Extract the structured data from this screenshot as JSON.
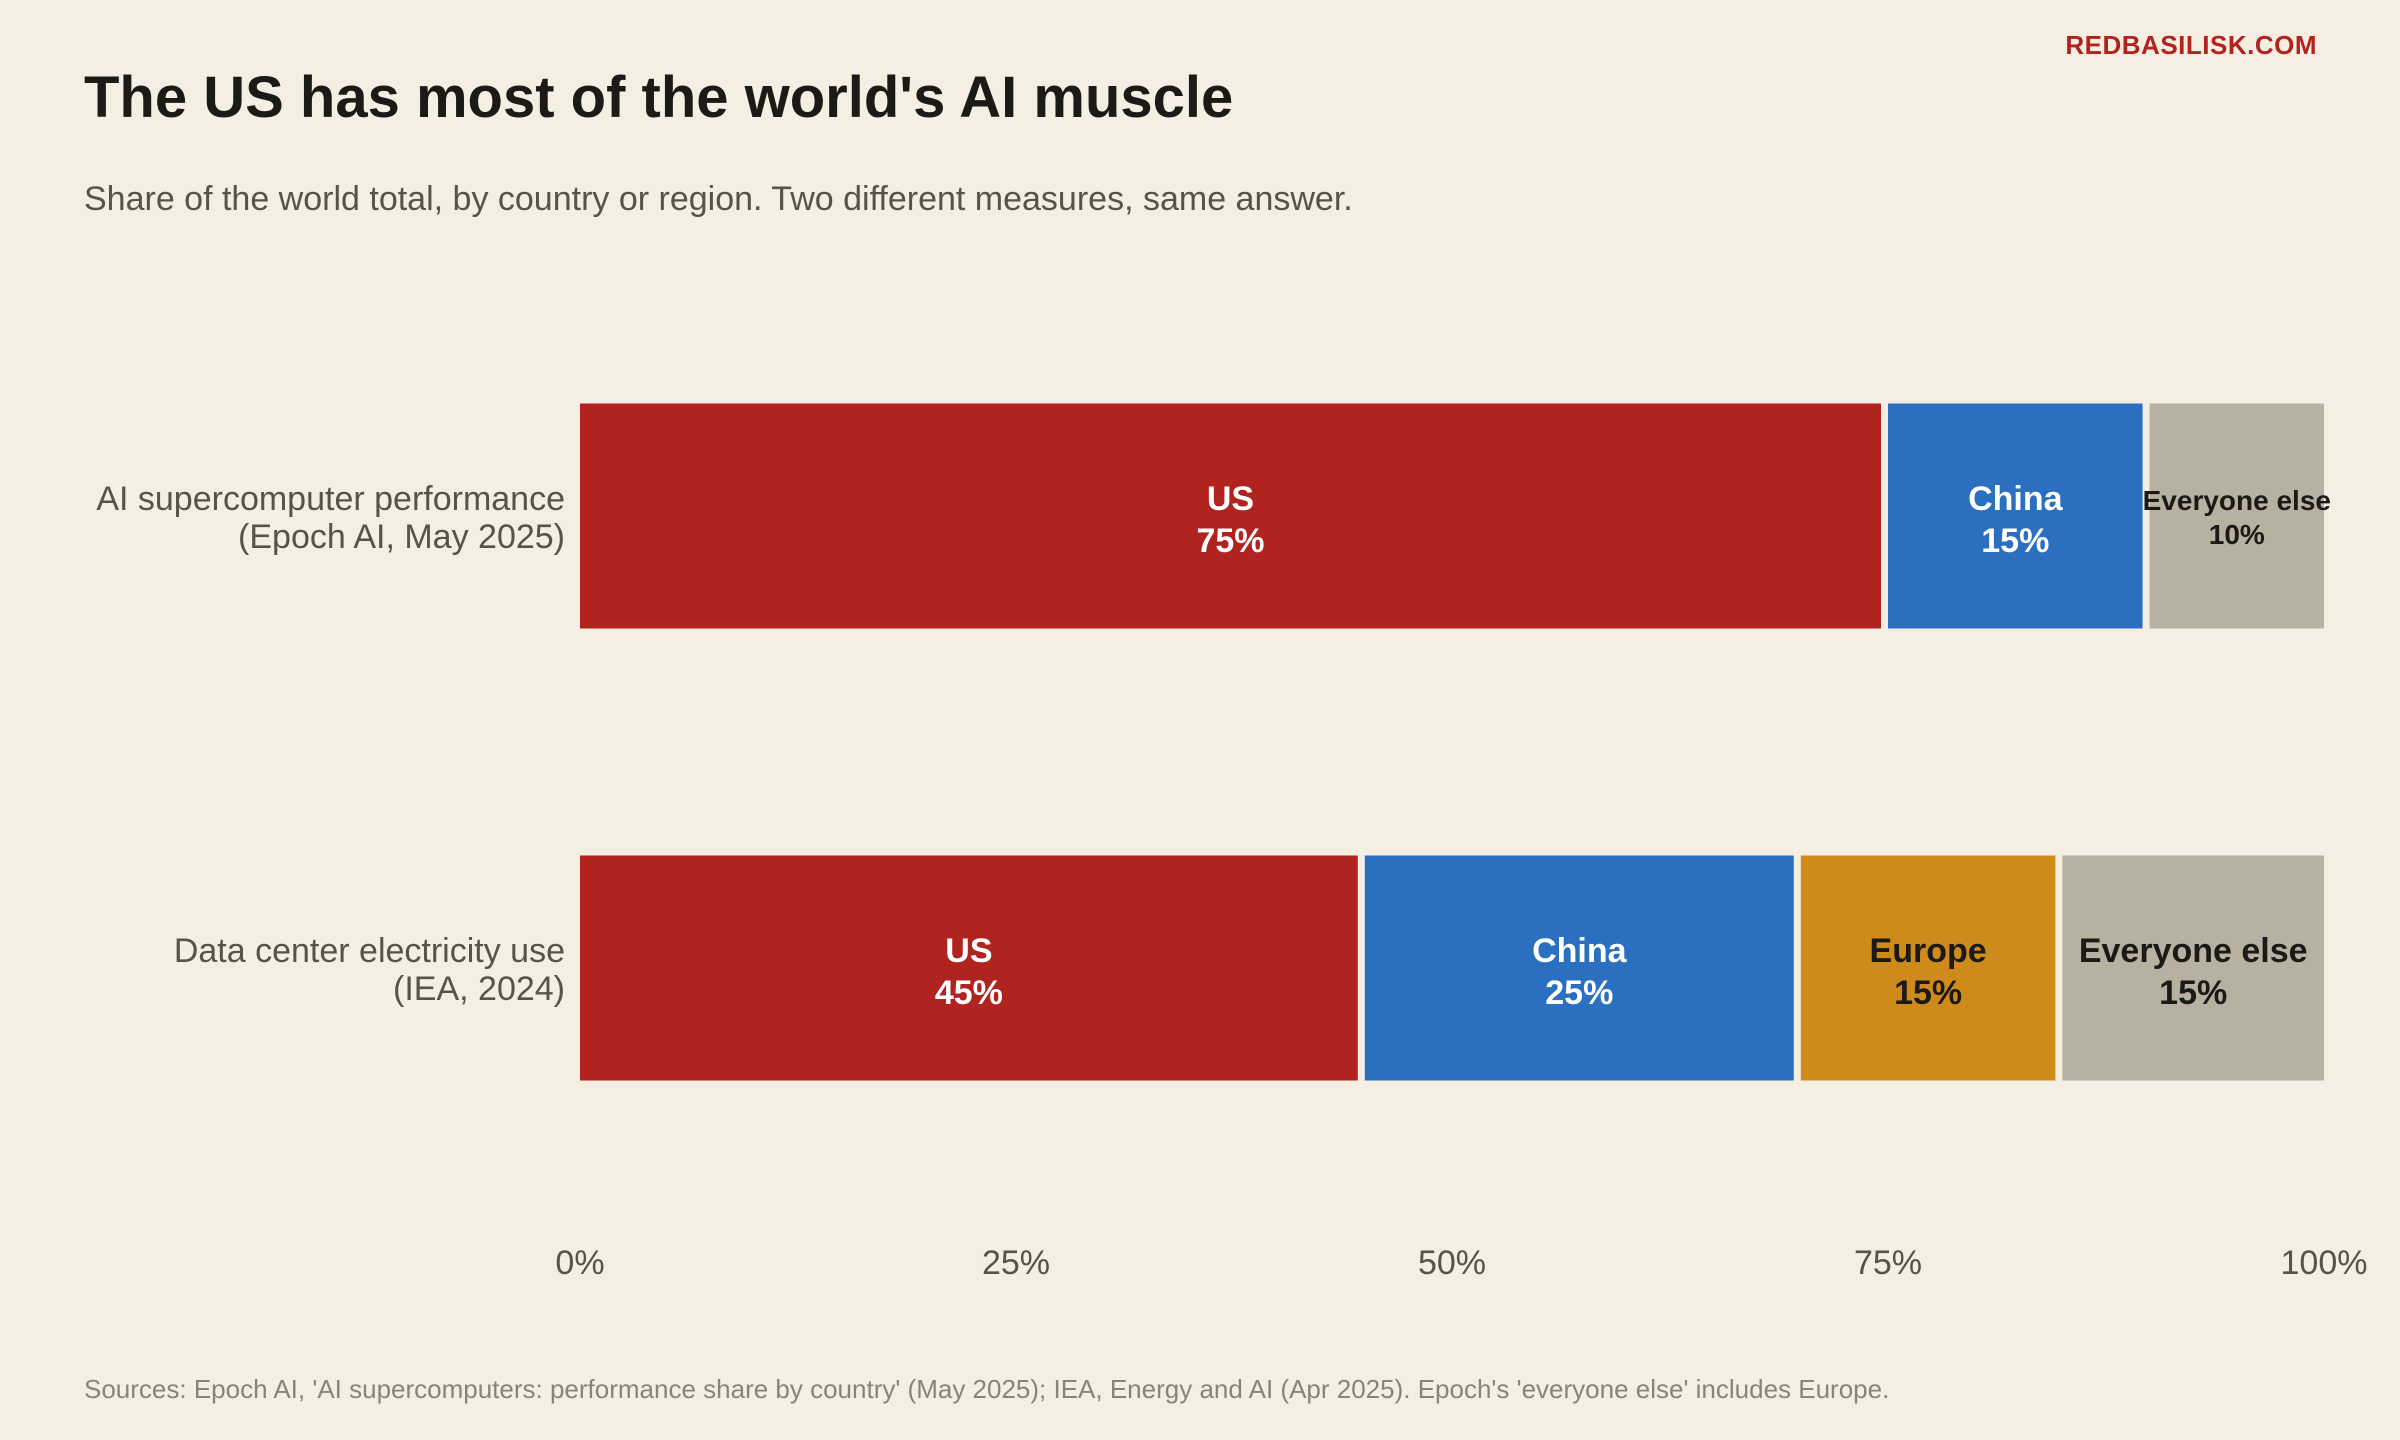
{
  "brand": "REDBASILISK.COM",
  "title": "The US has most of the world's AI muscle",
  "subtitle": "Share of the world total, by country or region. Two different measures, same answer.",
  "source": "Sources: Epoch AI, 'AI supercomputers: performance share by country' (May 2025); IEA, Energy and AI (Apr 2025). Epoch's 'everyone else' includes Europe.",
  "colors": {
    "us": "#b0231e",
    "china": "#2b6fc1",
    "europe": "#cf8a1c",
    "else": "#b8b0a0",
    "background": "#f5efe3"
  },
  "chart_data": {
    "type": "bar",
    "orientation": "horizontal-stacked",
    "xlim": [
      0,
      100
    ],
    "x_ticks": [
      "0%",
      "25%",
      "50%",
      "75%",
      "100%"
    ],
    "grid": false,
    "rows": [
      {
        "label_line1": "AI supercomputer performance",
        "label_line2": "(Epoch AI, May 2025)",
        "segments": [
          {
            "name": "US",
            "value": 75,
            "value_label": "75%",
            "color": "#b0231e",
            "text_color": "#ffffff"
          },
          {
            "name": "China",
            "value": 15,
            "value_label": "15%",
            "color": "#2b6fc1",
            "text_color": "#ffffff"
          },
          {
            "name": "Everyone else",
            "value": 10,
            "value_label": "10%",
            "color": "#b8b0a0",
            "text_color": "#1c1a16"
          }
        ]
      },
      {
        "label_line1": "Data center electricity use",
        "label_line2": "(IEA, 2024)",
        "segments": [
          {
            "name": "US",
            "value": 45,
            "value_label": "45%",
            "color": "#b0231e",
            "text_color": "#ffffff"
          },
          {
            "name": "China",
            "value": 25,
            "value_label": "25%",
            "color": "#2b6fc1",
            "text_color": "#ffffff"
          },
          {
            "name": "Europe",
            "value": 15,
            "value_label": "15%",
            "color": "#cf8a1c",
            "text_color": "#1c1a16"
          },
          {
            "name": "Everyone else",
            "value": 15,
            "value_label": "15%",
            "color": "#b8b0a0",
            "text_color": "#1c1a16"
          }
        ]
      }
    ]
  }
}
